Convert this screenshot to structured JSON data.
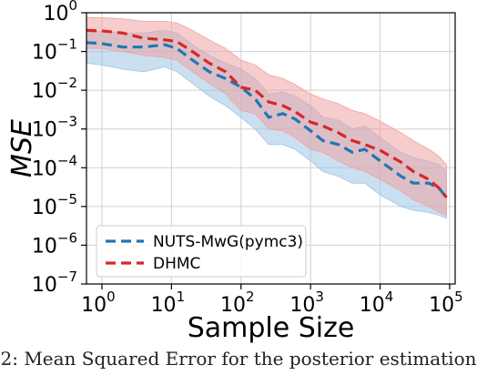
{
  "chart_data": {
    "type": "line",
    "xlabel": "Sample Size",
    "ylabel": "MSE",
    "xscale": "log",
    "yscale": "log",
    "xlim": [
      0.6,
      120000
    ],
    "ylim": [
      1e-07,
      1
    ],
    "grid": true,
    "legend_position": "lower-left",
    "x_ticks": [
      {
        "base": "10",
        "exp": "0",
        "value": 1
      },
      {
        "base": "10",
        "exp": "1",
        "value": 10
      },
      {
        "base": "10",
        "exp": "2",
        "value": 100
      },
      {
        "base": "10",
        "exp": "3",
        "value": 1000
      },
      {
        "base": "10",
        "exp": "4",
        "value": 10000
      },
      {
        "base": "10",
        "exp": "5",
        "value": 100000
      }
    ],
    "y_ticks": [
      {
        "base": "10",
        "exp": "0",
        "value": 1
      },
      {
        "base": "10",
        "exp": "−1",
        "value": 0.1
      },
      {
        "base": "10",
        "exp": "−2",
        "value": 0.01
      },
      {
        "base": "10",
        "exp": "−3",
        "value": 0.001
      },
      {
        "base": "10",
        "exp": "−4",
        "value": 0.0001
      },
      {
        "base": "10",
        "exp": "−5",
        "value": 1e-05
      },
      {
        "base": "10",
        "exp": "−6",
        "value": 1e-06
      },
      {
        "base": "10",
        "exp": "−7",
        "value": 1e-07
      }
    ],
    "series": [
      {
        "name": "NUTS-MwG(pymc3)",
        "color": "#1f77b4",
        "band_color": "#9ec5e4",
        "x": [
          0.6,
          1,
          2,
          4,
          8,
          12,
          20,
          35,
          60,
          100,
          160,
          250,
          400,
          600,
          1000,
          1500,
          2500,
          4000,
          6000,
          10000,
          20000,
          30000,
          50000,
          70000,
          90000
        ],
        "y": [
          0.17,
          0.16,
          0.13,
          0.13,
          0.15,
          0.12,
          0.06,
          0.03,
          0.02,
          0.012,
          0.006,
          0.002,
          0.0025,
          0.0018,
          0.0009,
          0.0005,
          0.0004,
          0.00025,
          0.0003,
          0.00015,
          6e-05,
          4e-05,
          4e-05,
          3e-05,
          1.7e-05
        ],
        "lower": [
          0.05,
          0.045,
          0.035,
          0.03,
          0.04,
          0.03,
          0.015,
          0.007,
          0.004,
          0.002,
          0.001,
          0.0004,
          0.0004,
          0.0003,
          0.00015,
          8e-05,
          6e-05,
          4e-05,
          4e-05,
          2e-05,
          1e-05,
          8e-06,
          7e-06,
          6e-06,
          5e-06
        ],
        "upper": [
          0.35,
          0.33,
          0.3,
          0.3,
          0.35,
          0.3,
          0.15,
          0.08,
          0.05,
          0.035,
          0.02,
          0.008,
          0.009,
          0.007,
          0.004,
          0.002,
          0.0017,
          0.001,
          0.0012,
          0.0006,
          0.00025,
          0.00018,
          0.00015,
          0.00012,
          8e-05
        ]
      },
      {
        "name": "DHMC",
        "color": "#d62728",
        "band_color": "#efa3a4",
        "x": [
          0.6,
          1,
          2,
          4,
          8,
          12,
          20,
          35,
          60,
          100,
          160,
          250,
          400,
          600,
          1000,
          1500,
          2500,
          4000,
          6000,
          10000,
          20000,
          30000,
          50000,
          70000,
          90000
        ],
        "y": [
          0.35,
          0.34,
          0.3,
          0.22,
          0.2,
          0.18,
          0.1,
          0.05,
          0.03,
          0.012,
          0.01,
          0.005,
          0.004,
          0.0028,
          0.0015,
          0.0012,
          0.0008,
          0.0005,
          0.0004,
          0.00028,
          0.00014,
          8e-05,
          5e-05,
          3e-05,
          1.7e-05
        ],
        "lower": [
          0.12,
          0.12,
          0.1,
          0.08,
          0.07,
          0.06,
          0.03,
          0.015,
          0.008,
          0.003,
          0.0025,
          0.001,
          0.0009,
          0.0006,
          0.0003,
          0.00025,
          0.00015,
          0.0001,
          8e-05,
          5e-05,
          2.5e-05,
          1.5e-05,
          1e-05,
          7e-06,
          6e-06
        ],
        "upper": [
          0.75,
          0.75,
          0.7,
          0.6,
          0.6,
          0.55,
          0.35,
          0.2,
          0.12,
          0.06,
          0.045,
          0.025,
          0.02,
          0.014,
          0.008,
          0.006,
          0.0045,
          0.003,
          0.0025,
          0.0016,
          0.0008,
          0.0005,
          0.0003,
          0.0002,
          0.00012
        ]
      }
    ]
  },
  "caption": "2: Mean Squared Error for the posterior estimation"
}
